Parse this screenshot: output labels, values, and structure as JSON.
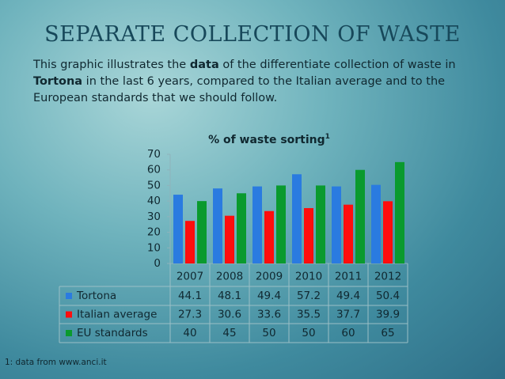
{
  "header": {
    "title": "SEPARATE COLLECTION OF WASTE",
    "description": [
      "This graphic illustrates the ",
      "data",
      " of the differentiate collection of waste in ",
      "Tortona",
      " in the last 6 years, compared to the Italian average and to the European standards that we should follow."
    ]
  },
  "chart_data": {
    "type": "bar",
    "title": "% of waste sorting",
    "title_sup": "1",
    "categories": [
      "2007",
      "2008",
      "2009",
      "2010",
      "2011",
      "2012"
    ],
    "series": [
      {
        "name": "Tortona",
        "color": "#2a7be0",
        "values": [
          44.1,
          48.1,
          49.4,
          57.2,
          49.4,
          50.4
        ]
      },
      {
        "name": "Italian average",
        "color": "#ff0d0d",
        "values": [
          27.3,
          30.6,
          33.6,
          35.5,
          37.7,
          39.9
        ]
      },
      {
        "name": "EU standards",
        "color": "#0a9a2e",
        "values": [
          40,
          45,
          50,
          50,
          60,
          65
        ]
      }
    ],
    "ylim": [
      0,
      70
    ],
    "yticks": [
      0,
      10,
      20,
      30,
      40,
      50,
      60,
      70
    ],
    "grid": false
  },
  "footnote": "1: data from www.anci.it"
}
